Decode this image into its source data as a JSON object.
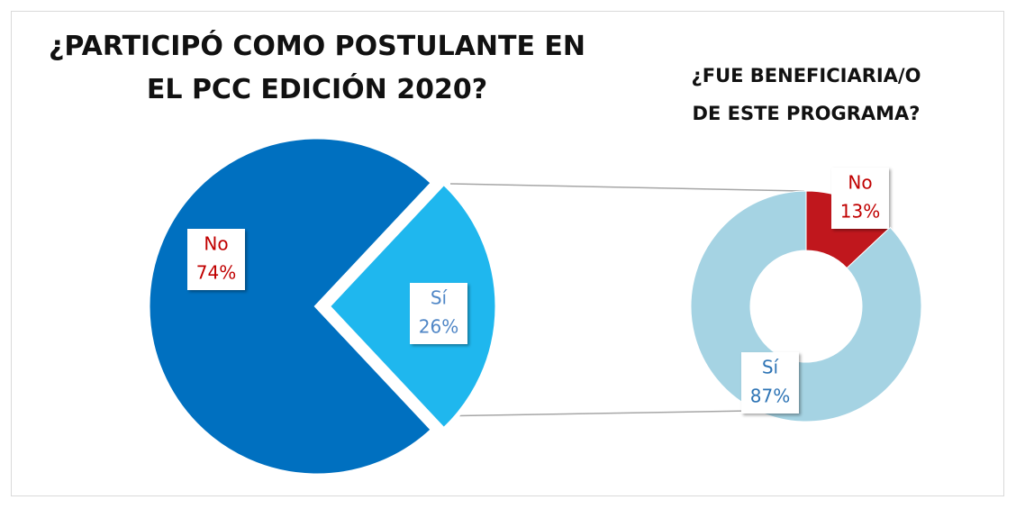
{
  "chart_data": [
    {
      "type": "pie",
      "title": "¿PARTICIPÓ COMO POSTULANTE EN EL PCC EDICIÓN 2020?",
      "categories": [
        "No",
        "Sí"
      ],
      "values": [
        74,
        26
      ],
      "value_labels": [
        "74%",
        "26%"
      ],
      "colors": [
        "#0070c0",
        "#1fb7ee"
      ]
    },
    {
      "type": "donut",
      "title": "¿FUE BENEFICIARIA/O DE ESTE PROGRAMA?",
      "categories": [
        "No",
        "Sí"
      ],
      "values": [
        13,
        87
      ],
      "value_labels": [
        "13%",
        "87%"
      ],
      "colors": [
        "#c0171d",
        "#a5d3e3"
      ]
    }
  ]
}
